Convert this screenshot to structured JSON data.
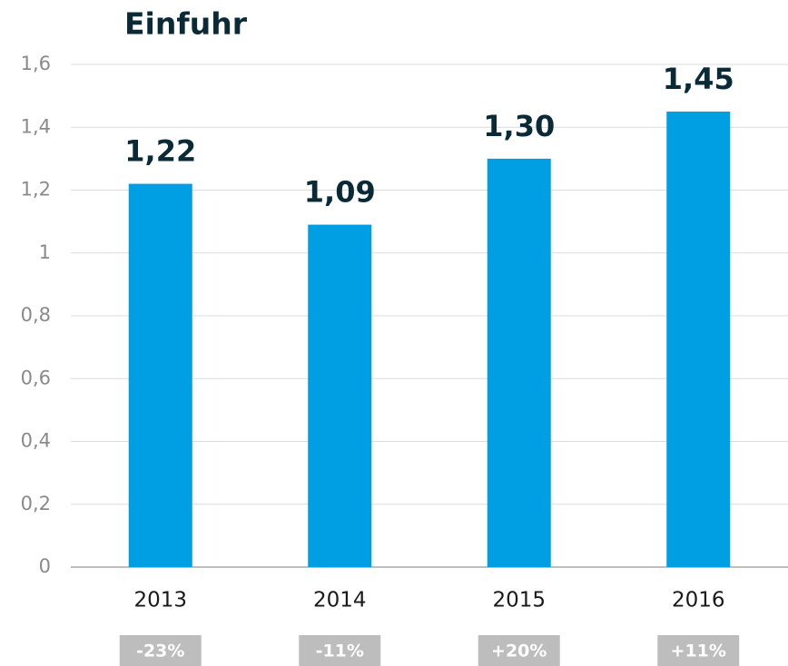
{
  "chart_data": {
    "type": "bar",
    "title": "Einfuhr",
    "categories": [
      "2013",
      "2014",
      "2015",
      "2016"
    ],
    "values": [
      1.22,
      1.09,
      1.3,
      1.45
    ],
    "value_labels": [
      "1,22",
      "1,09",
      "1,30",
      "1,45"
    ],
    "annotations": [
      "-23%",
      "-11%",
      "+20%",
      "+11%"
    ],
    "color": "#009fe3",
    "ylim": [
      0,
      1.6
    ],
    "yticks": [
      0,
      {
        "value": 0.2,
        "label": "0,2"
      },
      {
        "value": 0.4,
        "label": "0,4"
      },
      {
        "value": 0.6,
        "label": "0,6"
      },
      {
        "value": 0.8,
        "label": "0,8"
      },
      1,
      {
        "value": 1.2,
        "label": "1,2"
      },
      {
        "value": 1.4,
        "label": "1,4"
      },
      {
        "value": 1.6,
        "label": "1,6"
      }
    ],
    "grid": true
  }
}
